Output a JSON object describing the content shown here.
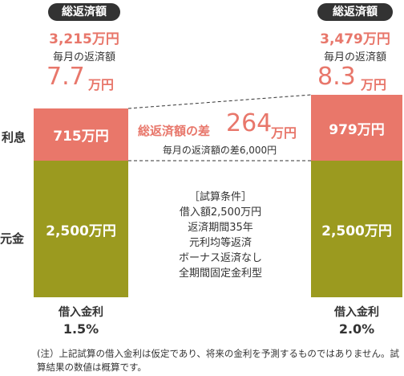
{
  "left": {
    "badge": "総返済額",
    "total": "3,215万円",
    "monthly_label": "毎月の返済額",
    "monthly_amount": "7.7",
    "monthly_unit": "万円",
    "interest": "715万円",
    "principal": "2,500万円",
    "rate_label": "借入金利",
    "rate": "1.5%"
  },
  "right": {
    "badge": "総返済額",
    "total": "3,479万円",
    "monthly_label": "毎月の返済額",
    "monthly_amount": "8.3",
    "monthly_unit": "万円",
    "interest": "979万円",
    "principal": "2,500万円",
    "rate_label": "借入金利",
    "rate": "2.0%"
  },
  "row_labels": {
    "interest": "利息",
    "principal": "元金"
  },
  "difference": {
    "label": "総返済額の差",
    "amount": "264",
    "unit": "万円",
    "monthly": "毎月の返済額の差6,000円"
  },
  "conditions": [
    "［試算条件］",
    "借入額2,500万円",
    "返済期間35年",
    "元利均等返済",
    "ボーナス返済なし",
    "全期間固定金利型"
  ],
  "note": "(注）上記試算の借入金利は仮定であり、将来の金利を予測するものではありません。試算結果の数値は概算です。"
}
